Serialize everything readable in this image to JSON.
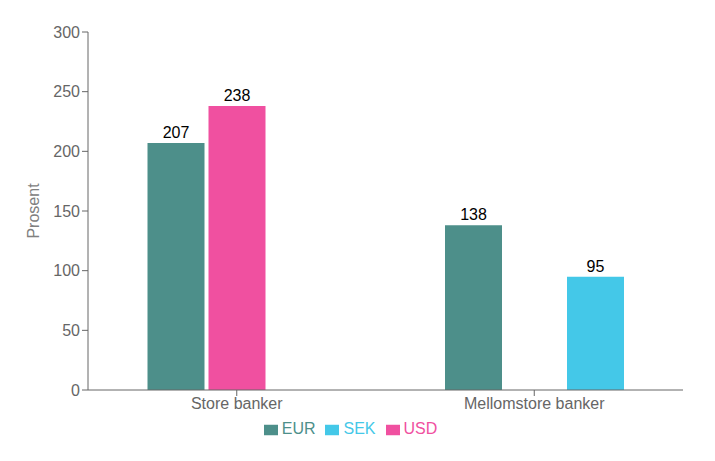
{
  "chart_data": {
    "type": "bar",
    "categories": [
      "Store banker",
      "Mellomstore banker"
    ],
    "series": [
      {
        "name": "EUR",
        "color": "#4d8f8a",
        "values": [
          207,
          138
        ]
      },
      {
        "name": "USD",
        "color": "#f050a0",
        "values": [
          238,
          null
        ]
      },
      {
        "name": "SEK",
        "color": "#44c8e8",
        "values": [
          null,
          95
        ]
      }
    ],
    "ylabel": "Prosent",
    "ylim": [
      0,
      300
    ],
    "yticks": [
      0,
      50,
      100,
      150,
      200,
      250,
      300
    ],
    "grid": false,
    "legend": "bottom",
    "data_labels": true
  }
}
